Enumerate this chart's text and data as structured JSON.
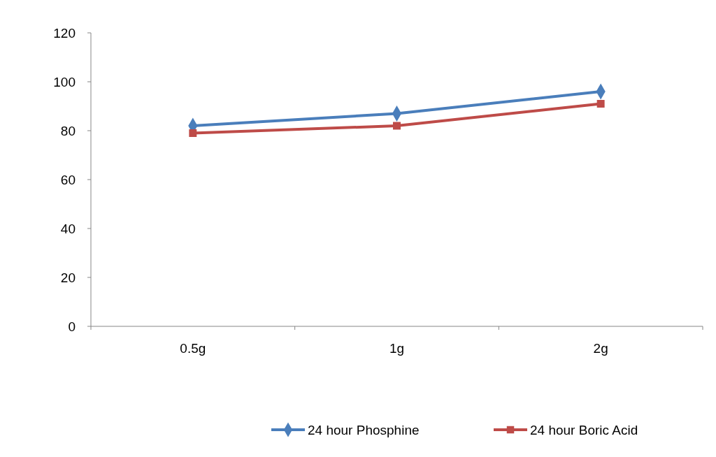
{
  "chart_data": {
    "type": "line",
    "categories": [
      "0.5g",
      "1g",
      "2g"
    ],
    "series": [
      {
        "name": "24 hour Phosphine",
        "color": "#4a7ebb",
        "values": [
          82,
          87,
          96
        ],
        "marker": "diamond"
      },
      {
        "name": "24 hour Boric Acid",
        "color": "#be4b48",
        "values": [
          79,
          82,
          91
        ],
        "marker": "square"
      }
    ],
    "ylim": [
      0,
      120
    ],
    "yticks": [
      0,
      20,
      40,
      60,
      80,
      100,
      120
    ],
    "grid": false,
    "legend": "bottom",
    "line_style": "solid"
  }
}
